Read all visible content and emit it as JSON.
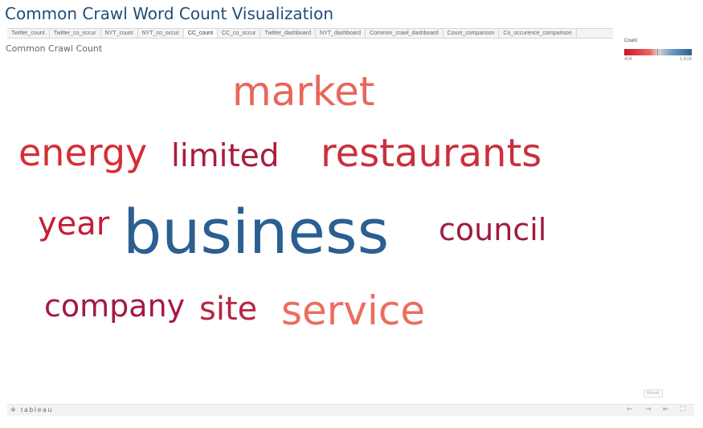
{
  "page": {
    "title": "Common Crawl Word Count Visualization"
  },
  "tabs": [
    {
      "label": "Twitter_count"
    },
    {
      "label": "Twitter_co_occur"
    },
    {
      "label": "NYT_count"
    },
    {
      "label": "NYT_co_occur"
    },
    {
      "label": "CC_count",
      "active": true
    },
    {
      "label": "CC_co_occur"
    },
    {
      "label": "Twitter_dashboard"
    },
    {
      "label": "NYT_dashboard"
    },
    {
      "label": "Common_crawl_dashboard"
    },
    {
      "label": "Count_comparison"
    },
    {
      "label": "Co_occurence_comparison"
    }
  ],
  "footer": {
    "logo": "tableau",
    "reset_label": "Reset",
    "icons": [
      "undo-icon",
      "redo-icon",
      "revert-icon",
      "fullscreen-icon"
    ]
  },
  "chart_data": {
    "type": "wordcloud",
    "title": "Common Crawl Count",
    "legend": {
      "title": "Count",
      "min": 404,
      "max": 1616,
      "colors": [
        "#c8102e",
        "#e96a5c",
        "#d7d3d6",
        "#6f9cc4",
        "#2b5f91"
      ],
      "placement": "top-right"
    },
    "words": [
      {
        "text": "business",
        "value": 1616,
        "color": "#2b5f91"
      },
      {
        "text": "market",
        "value": 700,
        "color": "#e8675a"
      },
      {
        "text": "restaurants",
        "value": 610,
        "color": "#c9303d"
      },
      {
        "text": "energy",
        "value": 600,
        "color": "#d42e36"
      },
      {
        "text": "service",
        "value": 590,
        "color": "#ec6d5d"
      },
      {
        "text": "year",
        "value": 520,
        "color": "#c61d37"
      },
      {
        "text": "company",
        "value": 500,
        "color": "#a31942"
      },
      {
        "text": "council",
        "value": 450,
        "color": "#9e1c3f"
      },
      {
        "text": "site",
        "value": 440,
        "color": "#b52640"
      },
      {
        "text": "limited",
        "value": 420,
        "color": "#a61d3c"
      }
    ]
  }
}
